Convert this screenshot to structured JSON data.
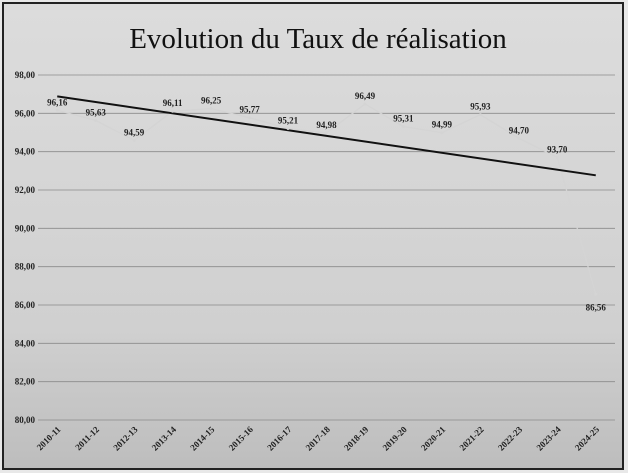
{
  "chart_data": {
    "type": "line",
    "title": "Evolution du Taux de réalisation",
    "categories": [
      "2010-11",
      "2011-12",
      "2012-13",
      "2013-14",
      "2014-15",
      "2015-16",
      "2016-17",
      "2017-18",
      "2018-19",
      "2019-20",
      "2020-21",
      "2021-22",
      "2022-23",
      "2023-24",
      "2024-25"
    ],
    "values": [
      96.16,
      95.63,
      94.59,
      96.11,
      96.25,
      95.77,
      95.21,
      94.98,
      96.49,
      95.31,
      94.99,
      95.93,
      94.7,
      93.7,
      86.56
    ],
    "value_labels": [
      "96,16",
      "95,63",
      "94,59",
      "96,11",
      "96,25",
      "95,77",
      "95,21",
      "94,98",
      "96,49",
      "95,31",
      "94,99",
      "95,93",
      "94,70",
      "93,70",
      "86,56"
    ],
    "color": "#d4d4d4",
    "trendline": "linear",
    "trendline_color": "#111111",
    "ylim": [
      80,
      98
    ],
    "yticks": [
      {
        "value": 80,
        "label": "80,00"
      },
      {
        "value": 82,
        "label": "82,00"
      },
      {
        "value": 84,
        "label": "84,00"
      },
      {
        "value": 86,
        "label": "86,00"
      },
      {
        "value": 88,
        "label": "88,00"
      },
      {
        "value": 90,
        "label": "90,00"
      },
      {
        "value": 92,
        "label": "92,00"
      },
      {
        "value": 94,
        "label": "94,00"
      },
      {
        "value": 96,
        "label": "96,00"
      },
      {
        "value": 98,
        "label": "98,00"
      }
    ],
    "grid": true
  }
}
